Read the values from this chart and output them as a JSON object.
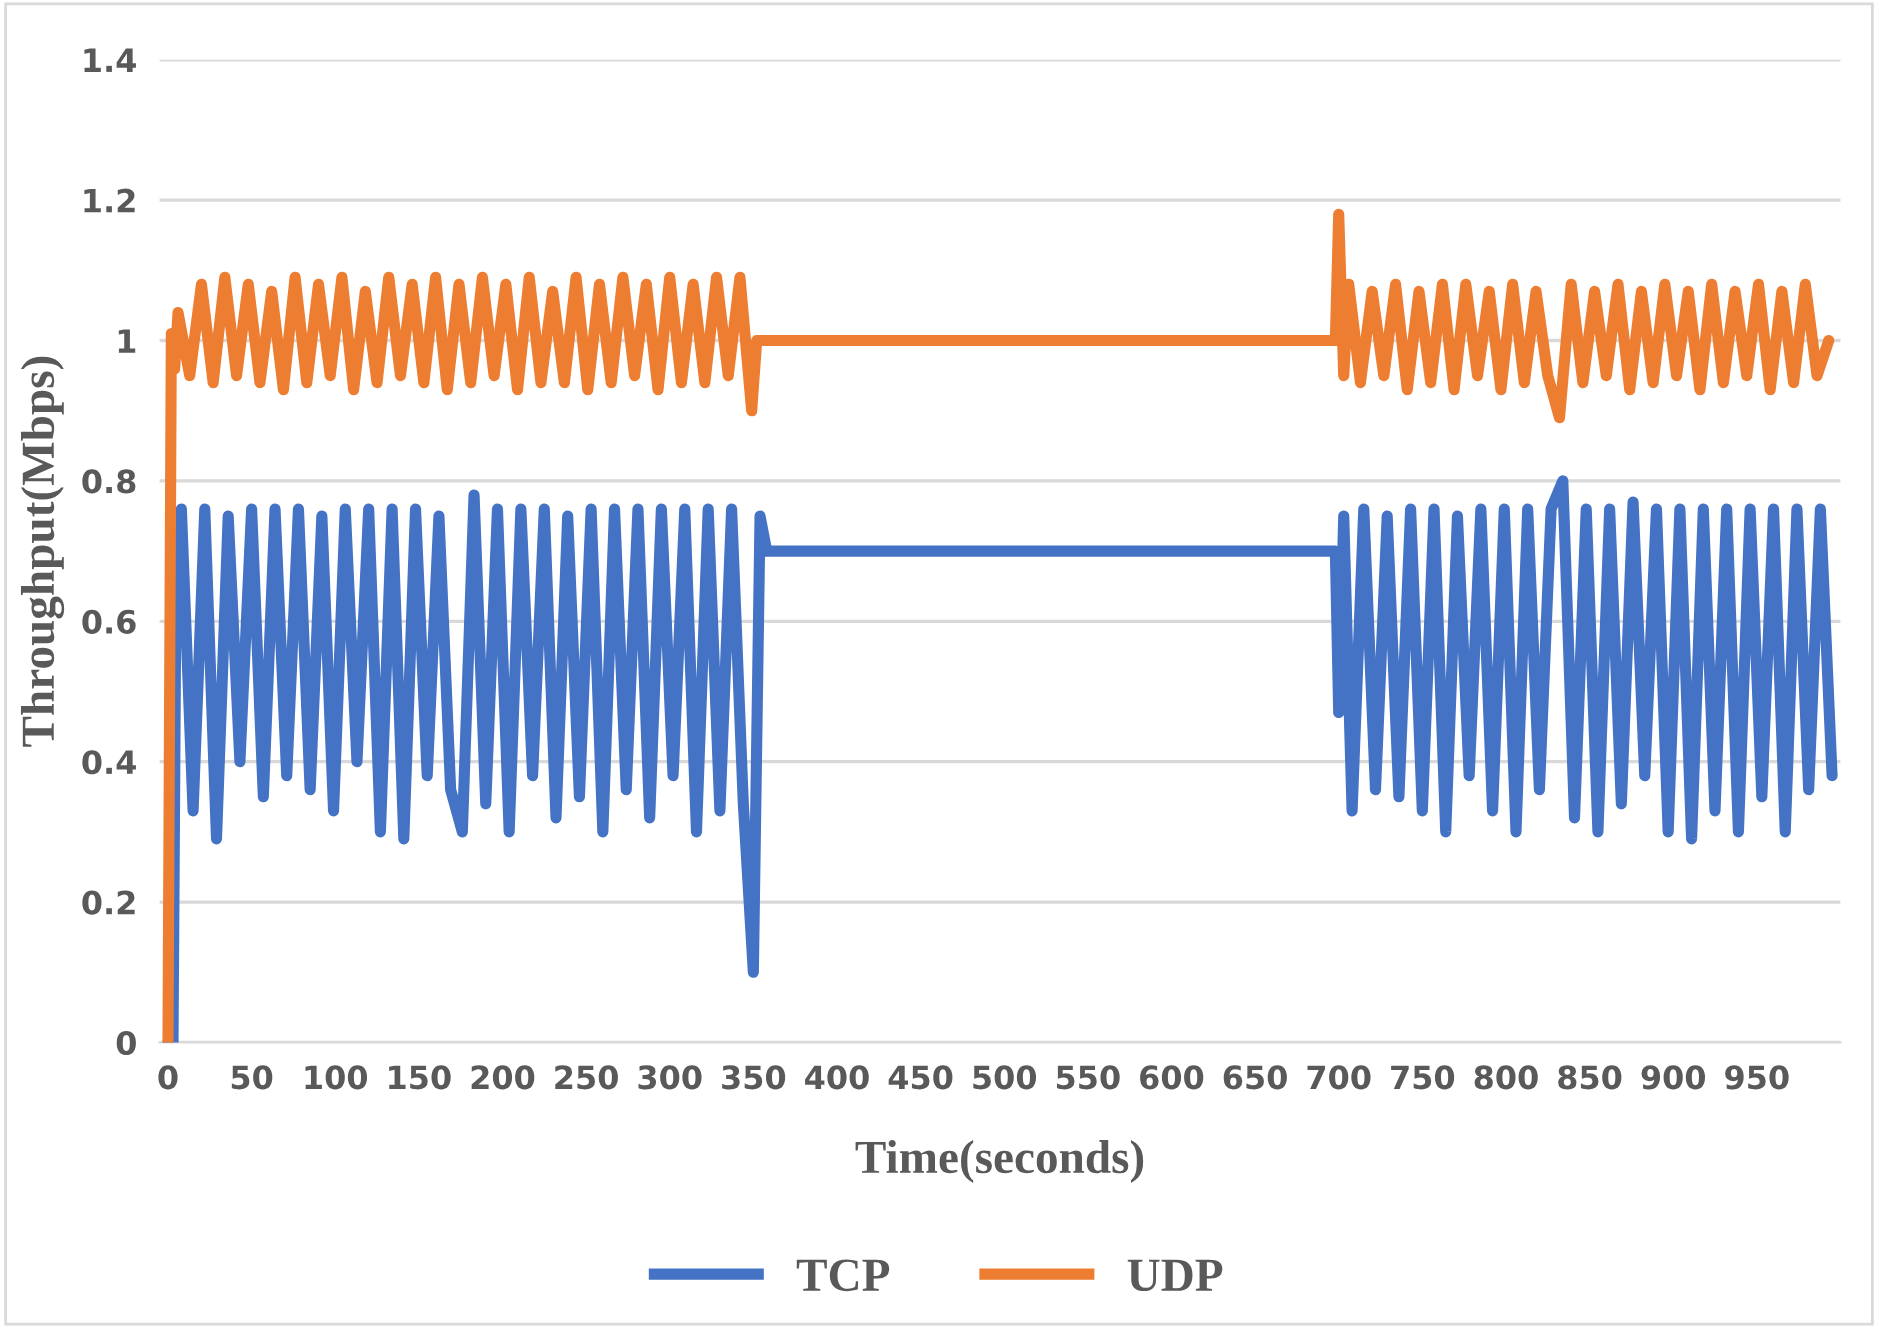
{
  "chart_data": {
    "type": "line",
    "xlabel": "Time(seconds)",
    "ylabel": "Throughput(Mbps)",
    "xlim": [
      -5,
      1000
    ],
    "xticks": [
      0,
      50,
      100,
      150,
      200,
      250,
      300,
      350,
      400,
      450,
      500,
      550,
      600,
      650,
      700,
      750,
      800,
      850,
      900,
      950
    ],
    "ylim": [
      0,
      1.4
    ],
    "yticks": [
      0,
      0.2,
      0.4,
      0.6,
      0.8,
      1,
      1.2,
      1.4
    ],
    "grid": "y",
    "legend": "bottom",
    "marker": "none",
    "line_style": "solid",
    "series": [
      {
        "name": "TCP",
        "color": "#4472c4",
        "x": [
          0,
          3,
          5,
          8,
          15,
          22,
          29,
          36,
          43,
          50,
          57,
          64,
          71,
          78,
          85,
          92,
          99,
          106,
          113,
          120,
          127,
          134,
          141,
          148,
          155,
          162,
          169,
          176,
          183,
          190,
          197,
          204,
          211,
          218,
          225,
          232,
          239,
          246,
          253,
          260,
          267,
          274,
          281,
          288,
          295,
          302,
          309,
          316,
          323,
          330,
          337,
          344,
          350,
          354,
          358,
          450,
          550,
          650,
          698,
          700,
          703,
          708,
          715,
          722,
          729,
          736,
          743,
          750,
          757,
          764,
          771,
          778,
          785,
          792,
          799,
          806,
          813,
          820,
          827,
          834,
          841,
          848,
          855,
          862,
          869,
          876,
          883,
          890,
          897,
          904,
          911,
          918,
          925,
          932,
          939,
          946,
          953,
          960,
          967,
          974,
          981,
          988,
          995
        ],
        "values": [
          0,
          0,
          0.74,
          0.76,
          0.33,
          0.76,
          0.29,
          0.75,
          0.4,
          0.76,
          0.35,
          0.76,
          0.38,
          0.76,
          0.36,
          0.75,
          0.33,
          0.76,
          0.4,
          0.76,
          0.3,
          0.76,
          0.29,
          0.76,
          0.38,
          0.75,
          0.36,
          0.3,
          0.78,
          0.34,
          0.76,
          0.3,
          0.76,
          0.38,
          0.76,
          0.32,
          0.75,
          0.35,
          0.76,
          0.3,
          0.76,
          0.36,
          0.76,
          0.32,
          0.76,
          0.38,
          0.76,
          0.3,
          0.76,
          0.33,
          0.76,
          0.34,
          0.1,
          0.75,
          0.7,
          0.7,
          0.7,
          0.7,
          0.7,
          0.47,
          0.75,
          0.33,
          0.76,
          0.36,
          0.75,
          0.35,
          0.76,
          0.33,
          0.76,
          0.3,
          0.75,
          0.38,
          0.76,
          0.33,
          0.76,
          0.3,
          0.76,
          0.36,
          0.76,
          0.8,
          0.32,
          0.76,
          0.3,
          0.76,
          0.34,
          0.77,
          0.38,
          0.76,
          0.3,
          0.76,
          0.29,
          0.76,
          0.33,
          0.76,
          0.3,
          0.76,
          0.35,
          0.76,
          0.3,
          0.76,
          0.36,
          0.76,
          0.38
        ]
      },
      {
        "name": "UDP",
        "color": "#ed7d31",
        "x": [
          0,
          2,
          4,
          6,
          13,
          20,
          27,
          34,
          41,
          48,
          55,
          62,
          69,
          76,
          83,
          90,
          97,
          104,
          111,
          118,
          125,
          132,
          139,
          146,
          153,
          160,
          167,
          174,
          181,
          188,
          195,
          202,
          209,
          216,
          223,
          230,
          237,
          244,
          251,
          258,
          265,
          272,
          279,
          286,
          293,
          300,
          307,
          314,
          321,
          328,
          335,
          342,
          349,
          352,
          356,
          450,
          550,
          650,
          698,
          700,
          703,
          706,
          713,
          720,
          727,
          734,
          741,
          748,
          755,
          762,
          769,
          776,
          783,
          790,
          797,
          804,
          811,
          818,
          825,
          832,
          839,
          846,
          853,
          860,
          867,
          874,
          881,
          888,
          895,
          902,
          909,
          916,
          923,
          930,
          937,
          944,
          951,
          958,
          965,
          972,
          979,
          986,
          993
        ],
        "values": [
          0,
          1.01,
          0.96,
          1.04,
          0.95,
          1.08,
          0.94,
          1.09,
          0.95,
          1.08,
          0.94,
          1.07,
          0.93,
          1.09,
          0.94,
          1.08,
          0.95,
          1.09,
          0.93,
          1.07,
          0.94,
          1.09,
          0.95,
          1.08,
          0.94,
          1.09,
          0.93,
          1.08,
          0.94,
          1.09,
          0.95,
          1.08,
          0.93,
          1.09,
          0.94,
          1.07,
          0.94,
          1.09,
          0.93,
          1.08,
          0.94,
          1.09,
          0.95,
          1.08,
          0.93,
          1.09,
          0.94,
          1.08,
          0.94,
          1.09,
          0.95,
          1.09,
          0.9,
          1.0,
          1.0,
          1.0,
          1.0,
          1.0,
          1.0,
          1.18,
          0.95,
          1.08,
          0.94,
          1.07,
          0.95,
          1.08,
          0.93,
          1.07,
          0.94,
          1.08,
          0.93,
          1.08,
          0.95,
          1.07,
          0.93,
          1.08,
          0.94,
          1.07,
          0.95,
          0.89,
          1.08,
          0.94,
          1.07,
          0.95,
          1.08,
          0.93,
          1.07,
          0.94,
          1.08,
          0.95,
          1.07,
          0.93,
          1.08,
          0.94,
          1.07,
          0.95,
          1.08,
          0.93,
          1.07,
          0.94,
          1.08,
          0.95,
          1.0
        ]
      }
    ]
  }
}
